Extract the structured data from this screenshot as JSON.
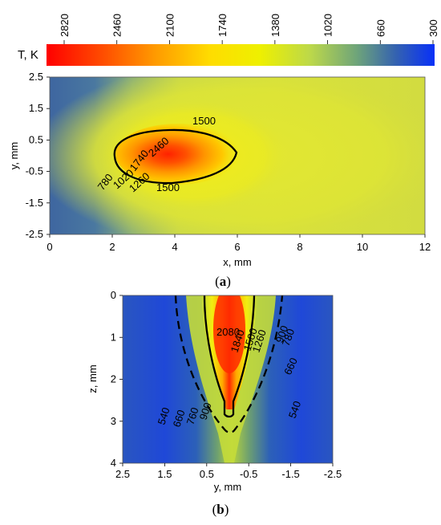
{
  "colorbar": {
    "label": "T, K",
    "ticks": [
      2820,
      2460,
      2100,
      1740,
      1380,
      1020,
      660,
      300
    ],
    "range": [
      300,
      2820
    ],
    "colors": [
      "#ff0000",
      "#ff7a00",
      "#ffd200",
      "#f0f000",
      "#c8e040",
      "#7ab86a",
      "#3c6ea8",
      "#0a32f5"
    ]
  },
  "panel_a": {
    "caption": "(a)",
    "caption_letter": "a",
    "xlabel": "x, mm",
    "ylabel": "y, mm",
    "xticks": [
      "0",
      "2",
      "4",
      "6",
      "8",
      "10",
      "12"
    ],
    "yticks": [
      "2.5",
      "1.5",
      "0.5",
      "-0.5",
      "-1.5",
      "-2.5"
    ],
    "contour_labels": [
      "1500",
      "2460",
      "1740",
      "1500",
      "1260",
      "1020",
      "780"
    ]
  },
  "panel_b": {
    "caption": "(b)",
    "caption_letter": "b",
    "xlabel": "y, mm",
    "ylabel": "z, mm",
    "xticks": [
      "2.5",
      "1.5",
      "0.5",
      "-0.5",
      "-1.5",
      "-2.5"
    ],
    "yticks": [
      "0",
      "1",
      "2",
      "3",
      "4"
    ],
    "contour_labels": [
      "2080",
      "1840",
      "1500",
      "1260",
      "900",
      "780",
      "660",
      "540",
      "540",
      "660",
      "760",
      "900"
    ]
  },
  "chart_data": [
    {
      "type": "heatmap",
      "title": "",
      "xlabel": "x, mm",
      "ylabel": "y, mm",
      "xlim": [
        0,
        12
      ],
      "ylim": [
        -2.5,
        2.5
      ],
      "colorbar_label": "T, K",
      "colorbar_range": [
        300,
        2820
      ],
      "peak": {
        "x": 3.8,
        "y": 0.0,
        "T": 2820
      },
      "contours": [
        {
          "level": 1500,
          "style": "solid",
          "x_extent": [
            2.0,
            6.0
          ],
          "y_extent": [
            -0.8,
            0.8
          ]
        },
        {
          "level": 2460
        },
        {
          "level": 1740
        },
        {
          "level": 1260
        },
        {
          "level": 1020
        },
        {
          "level": 780
        }
      ]
    },
    {
      "type": "heatmap",
      "title": "",
      "xlabel": "y, mm",
      "ylabel": "z, mm",
      "xlim": [
        2.5,
        -2.5
      ],
      "ylim": [
        4,
        0
      ],
      "colorbar_label": "T, K",
      "colorbar_range": [
        300,
        2820
      ],
      "contours": [
        {
          "level": 1500,
          "style": "solid",
          "depth": 2.85
        },
        {
          "level": 900,
          "style": "dashed",
          "depth": 3.3
        },
        {
          "level": 2080
        },
        {
          "level": 1840
        },
        {
          "level": 1260
        },
        {
          "level": 780
        },
        {
          "level": 760
        },
        {
          "level": 660
        },
        {
          "level": 540
        }
      ]
    }
  ]
}
